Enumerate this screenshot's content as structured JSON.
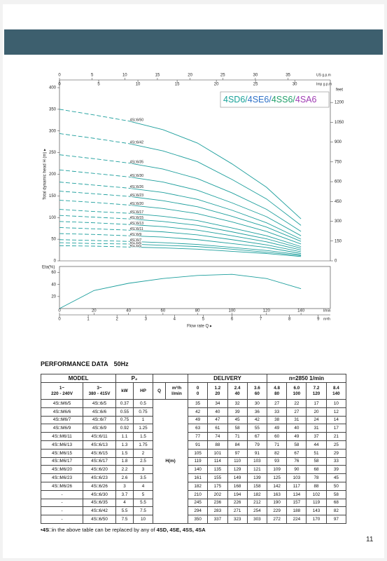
{
  "chart": {
    "type": "line",
    "series_label": [
      {
        "text": "4SD6/",
        "color": "#1aa39a"
      },
      {
        "text": "4SE6/",
        "color": "#2f72c8"
      },
      {
        "text": "4SS6/",
        "color": "#22a06b"
      },
      {
        "text": "4SA6",
        "color": "#a03cb4"
      }
    ],
    "curve_color": "#1c9e9c",
    "us_axis": {
      "label": "US g.p.m",
      "ticks": [
        0,
        5,
        10,
        15,
        20,
        25,
        30,
        35
      ]
    },
    "imp_axis": {
      "label": "Imp g.p.m",
      "ticks": [
        0,
        5,
        10,
        15,
        20,
        25,
        30
      ]
    },
    "h_axis": {
      "label": "Total dynamic head H (m) ▸",
      "ylim": [
        0,
        400
      ],
      "ticks": [
        0,
        50,
        100,
        150,
        200,
        250,
        300,
        350,
        400
      ]
    },
    "feet_axis": {
      "label": "feet",
      "ticks": [
        0,
        150,
        300,
        450,
        600,
        750,
        900,
        1050,
        1200
      ]
    },
    "flow_axis": {
      "label": "Flow rate Q ▸",
      "xlim": [
        0,
        157
      ],
      "lmin_unit": "l/min",
      "lmin_ticks": [
        0,
        20,
        40,
        60,
        80,
        100,
        120,
        140
      ],
      "m3h_unit": "m³/h",
      "m3h_ticks": [
        0,
        1,
        2,
        3,
        4,
        5,
        6,
        7,
        8,
        9
      ]
    },
    "eta": {
      "label": "Eta(%)",
      "ylim": [
        0,
        70
      ],
      "ticks": [
        20,
        40,
        60
      ],
      "values": [
        0,
        30,
        42,
        50,
        55,
        57,
        50,
        33
      ]
    }
  },
  "table": {
    "title": "PERFORMANCE DATA",
    "freq": "50Hz",
    "head": {
      "model": "MODEL",
      "p2": "P₂",
      "delivery": "DELIVERY",
      "speed": "n≈2850 1/min",
      "ph1": "1~",
      "v1": "220 - 240V",
      "ph3": "3~",
      "v3": "380 - 415V",
      "kw": "kW",
      "hp": "HP",
      "q": "Q",
      "m3h": "m³/h",
      "lmin": "l/min",
      "q_m3h": [
        "0",
        "1.2",
        "2.4",
        "3.6",
        "4.8",
        "6.0",
        "7.2",
        "8.4"
      ],
      "q_lmin": [
        0,
        20,
        40,
        60,
        80,
        100,
        120,
        140
      ]
    },
    "h_label": "H(m)",
    "rows": [
      {
        "m1": "4S□M6/5",
        "m3": "4S□6/5",
        "kw": 0.37,
        "hp": 0.5,
        "h": [
          35,
          34,
          32,
          30,
          27,
          22,
          17,
          10
        ]
      },
      {
        "m1": "4S□M6/6",
        "m3": "4S□6/6",
        "kw": 0.55,
        "hp": 0.75,
        "h": [
          42,
          40,
          39,
          36,
          33,
          27,
          20,
          12
        ]
      },
      {
        "m1": "4S□M6/7",
        "m3": "4S□6/7",
        "kw": 0.75,
        "hp": 1,
        "h": [
          49,
          47,
          45,
          42,
          38,
          31,
          24,
          14
        ]
      },
      {
        "m1": "4S□M6/9",
        "m3": "4S□6/9",
        "kw": 0.92,
        "hp": 1.25,
        "h": [
          63,
          61,
          58,
          55,
          49,
          40,
          31,
          17
        ]
      },
      {
        "m1": "4S□M6/11",
        "m3": "4S□6/11",
        "kw": 1.1,
        "hp": 1.5,
        "h": [
          77,
          74,
          71,
          67,
          60,
          49,
          37,
          21
        ]
      },
      {
        "m1": "4S□M6/13",
        "m3": "4S□6/13",
        "kw": 1.3,
        "hp": 1.75,
        "h": [
          91,
          88,
          84,
          79,
          71,
          58,
          44,
          25
        ]
      },
      {
        "m1": "4S□M6/15",
        "m3": "4S□6/15",
        "kw": 1.5,
        "hp": 2,
        "h": [
          105,
          101,
          97,
          91,
          82,
          67,
          51,
          29
        ]
      },
      {
        "m1": "4S□M6/17",
        "m3": "4S□6/17",
        "kw": 1.8,
        "hp": 2.5,
        "h": [
          119,
          114,
          110,
          103,
          93,
          76,
          58,
          33
        ]
      },
      {
        "m1": "4S□M6/20",
        "m3": "4S□6/20",
        "kw": 2.2,
        "hp": 3,
        "h": [
          140,
          135,
          129,
          121,
          109,
          90,
          68,
          39
        ]
      },
      {
        "m1": "4S□M6/23",
        "m3": "4S□6/23",
        "kw": 2.6,
        "hp": 3.5,
        "h": [
          161,
          155,
          149,
          139,
          125,
          103,
          78,
          45
        ]
      },
      {
        "m1": "4S□M6/26",
        "m3": "4S□6/26",
        "kw": 3,
        "hp": 4,
        "h": [
          182,
          175,
          168,
          158,
          142,
          117,
          88,
          50
        ]
      },
      {
        "m1": "-",
        "m3": "4S□6/30",
        "kw": 3.7,
        "hp": 5,
        "h": [
          210,
          202,
          194,
          182,
          163,
          134,
          102,
          58
        ]
      },
      {
        "m1": "-",
        "m3": "4S□6/35",
        "kw": 4,
        "hp": 5.5,
        "h": [
          245,
          236,
          226,
          212,
          190,
          157,
          119,
          68
        ]
      },
      {
        "m1": "-",
        "m3": "4S□6/42",
        "kw": 5.5,
        "hp": 7.5,
        "h": [
          294,
          283,
          271,
          254,
          229,
          188,
          143,
          82
        ]
      },
      {
        "m1": "-",
        "m3": "4S□6/50",
        "kw": 7.5,
        "hp": 10,
        "h": [
          350,
          337,
          323,
          303,
          272,
          224,
          170,
          97
        ]
      }
    ]
  },
  "footnote": [
    "•4S□",
    "in the above table can be replaced by any of ",
    "4SD, 4SE, 4SS, 4SA"
  ],
  "page_number": "11"
}
